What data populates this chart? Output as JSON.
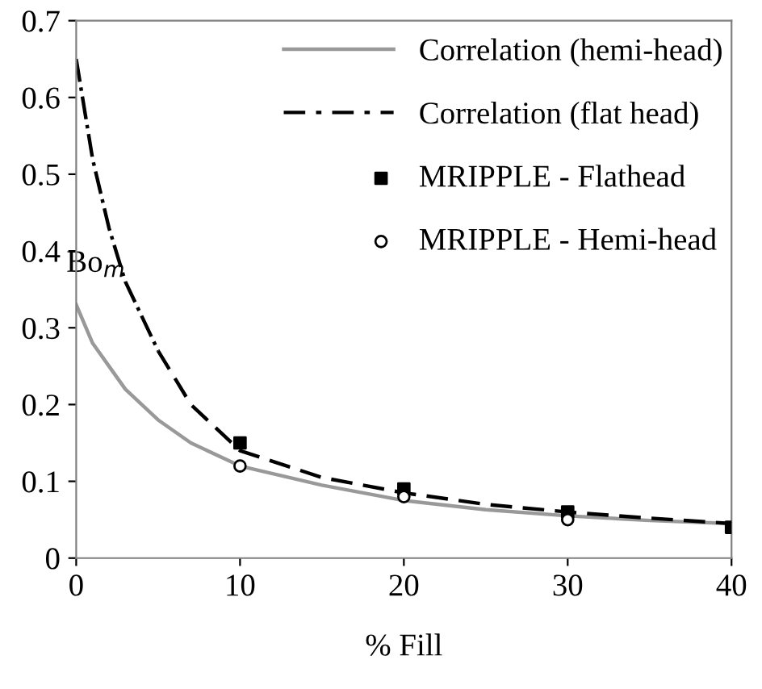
{
  "chart_data": {
    "type": "line",
    "xlabel": "% Fill",
    "ylabel": "Bo$_{m}$",
    "xlim": [
      0,
      40
    ],
    "ylim": [
      0,
      0.7
    ],
    "xticks": [
      0,
      10,
      20,
      30,
      40
    ],
    "yticks": [
      0,
      0.1,
      0.2,
      0.3,
      0.4,
      0.5,
      0.6,
      0.7
    ],
    "legend": "top right",
    "grid": false,
    "series": [
      {
        "name": "Correlation (hemi-head)",
        "type": "line",
        "color": "#999999",
        "line_style": "solid",
        "x": [
          0,
          1,
          2,
          3,
          5,
          7,
          10,
          15,
          20,
          25,
          30,
          35,
          40
        ],
        "values": [
          0.33,
          0.28,
          0.25,
          0.22,
          0.18,
          0.15,
          0.12,
          0.095,
          0.075,
          0.063,
          0.055,
          0.049,
          0.045
        ]
      },
      {
        "name": "Correlation (flat head)",
        "type": "line",
        "color": "#000000",
        "line_style": "dashdot_dashed",
        "x": [
          0,
          1,
          2,
          3,
          5,
          7,
          10,
          15,
          20,
          25,
          30,
          35,
          40
        ],
        "values": [
          0.65,
          0.52,
          0.43,
          0.36,
          0.27,
          0.2,
          0.14,
          0.105,
          0.085,
          0.07,
          0.06,
          0.052,
          0.045
        ]
      },
      {
        "name": "MRIPPLE - Flathead",
        "type": "scatter",
        "marker": "square",
        "color": "#000000",
        "x": [
          10,
          20,
          30,
          40
        ],
        "values": [
          0.15,
          0.09,
          0.06,
          0.04
        ]
      },
      {
        "name": "MRIPPLE - Hemi-head",
        "type": "scatter",
        "marker": "circle_open",
        "color": "#000000",
        "x": [
          10,
          20,
          30
        ],
        "values": [
          0.12,
          0.08,
          0.05
        ]
      }
    ]
  }
}
